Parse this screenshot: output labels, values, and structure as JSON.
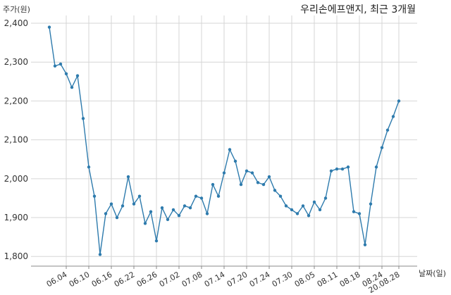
{
  "chart_data": {
    "type": "line",
    "title": "우리손에프앤지, 최근 3개월",
    "ylabel": "주가(원)",
    "xlabel": "날짜(일)",
    "ylim": [
      1775,
      2420
    ],
    "y_ticks": [
      1800,
      1900,
      2000,
      2100,
      2200,
      2300,
      2400
    ],
    "y_tick_labels": [
      "1,800",
      "1,900",
      "2,000",
      "2,100",
      "2,200",
      "2,300",
      "2,400"
    ],
    "x_tick_labels": [
      "06.04",
      "06.10",
      "06.16",
      "06.22",
      "06.26",
      "07.02",
      "07.08",
      "07.14",
      "07.20",
      "07.24",
      "07.30",
      "08.05",
      "08.11",
      "08.18",
      "08.24",
      "20.08.28"
    ],
    "x_tick_index": [
      3,
      7,
      11,
      15,
      19,
      23,
      27,
      31,
      35,
      39,
      43,
      47,
      51,
      55,
      59,
      62
    ],
    "grid": true,
    "series": [
      {
        "color": "#2e7bad",
        "values": [
          2390,
          2290,
          2295,
          2270,
          2235,
          2265,
          2155,
          2030,
          1955,
          1805,
          1910,
          1935,
          1900,
          1930,
          2005,
          1935,
          1955,
          1885,
          1915,
          1840,
          1925,
          1895,
          1920,
          1905,
          1930,
          1925,
          1955,
          1950,
          1910,
          1985,
          1955,
          2015,
          2075,
          2045,
          1985,
          2020,
          2015,
          1990,
          1985,
          2005,
          1970,
          1955,
          1930,
          1920,
          1910,
          1930,
          1905,
          1940,
          1920,
          1950,
          2020,
          2025,
          2025,
          2030,
          1915,
          1910,
          1830,
          1935,
          2030,
          2080,
          2125,
          2160,
          2200
        ]
      }
    ]
  }
}
